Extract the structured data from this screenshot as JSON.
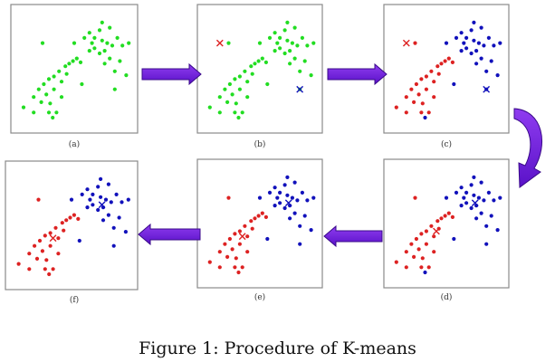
{
  "caption": "Figure 1: Procedure of K-means",
  "colors": {
    "unassigned": "#22dd22",
    "cluster_red": "#dd2222",
    "cluster_blue": "#1111bb",
    "arrow": "#7a22e6",
    "arrow_stroke": "#3a0a8a"
  },
  "panels": [
    {
      "label": "(a)",
      "stage": "unassigned",
      "centroids": []
    },
    {
      "label": "(b)",
      "stage": "unassigned",
      "centroids": [
        {
          "cluster": "red",
          "at": "init-red"
        },
        {
          "cluster": "blue",
          "at": "init-blue"
        }
      ]
    },
    {
      "label": "(c)",
      "stage": "assign-1",
      "centroids": [
        {
          "cluster": "red",
          "at": "init-red"
        },
        {
          "cluster": "blue",
          "at": "init-blue"
        }
      ]
    },
    {
      "label": "(d)",
      "stage": "assign-1",
      "centroids": [
        {
          "cluster": "red",
          "at": "mean-red-1"
        },
        {
          "cluster": "blue",
          "at": "mean-blue-1"
        }
      ]
    },
    {
      "label": "(e)",
      "stage": "assign-2",
      "centroids": [
        {
          "cluster": "red",
          "at": "mean-red-2"
        },
        {
          "cluster": "blue",
          "at": "mean-blue-2"
        }
      ]
    },
    {
      "label": "(f)",
      "stage": "assign-2",
      "centroids": [
        {
          "cluster": "red",
          "at": "mean-red-2"
        },
        {
          "cluster": "blue",
          "at": "mean-blue-2"
        }
      ]
    }
  ],
  "arrows": [
    "a-to-b",
    "b-to-c",
    "c-to-d",
    "d-to-e",
    "e-to-f"
  ]
}
